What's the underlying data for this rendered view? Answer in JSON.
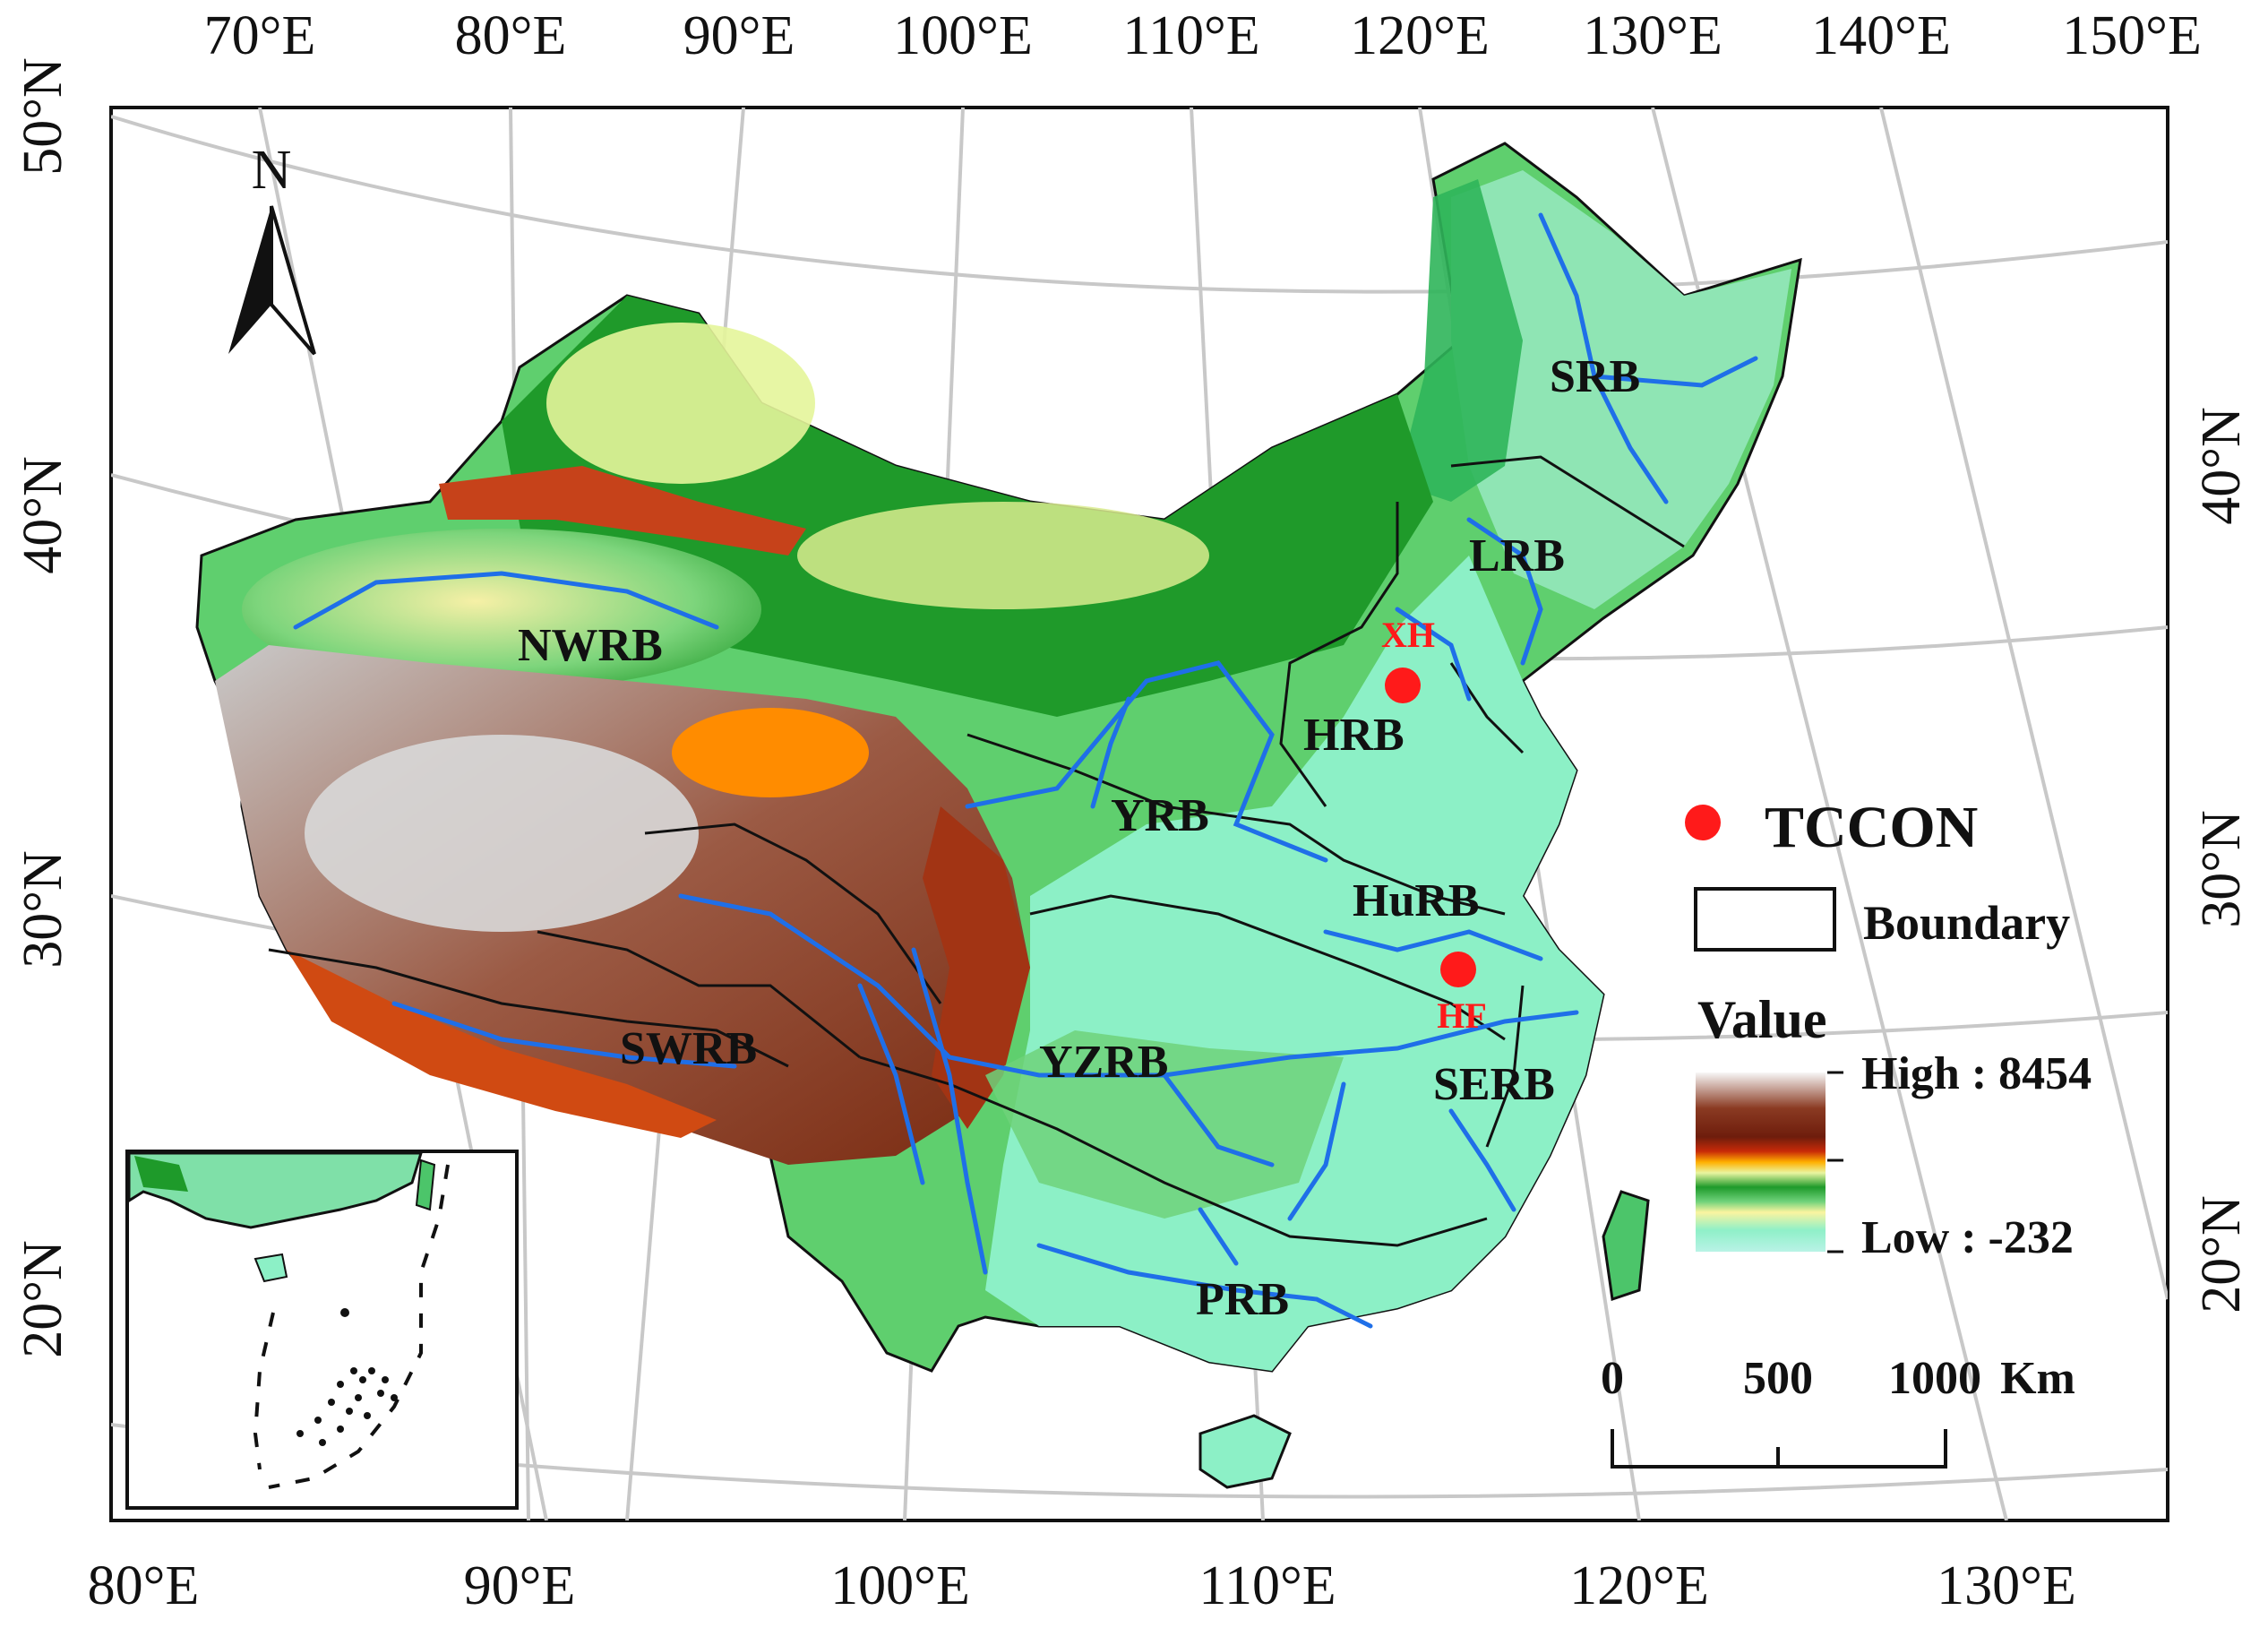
{
  "axes": {
    "top_lon": [
      "70°E",
      "80°E",
      "90°E",
      "100°E",
      "110°E",
      "120°E",
      "130°E",
      "140°E",
      "150°E"
    ],
    "bottom_lon": [
      "80°E",
      "90°E",
      "100°E",
      "110°E",
      "120°E",
      "130°E"
    ],
    "left_lat": [
      "50°N",
      "40°N",
      "30°N",
      "20°N"
    ],
    "right_lat": [
      "40°N",
      "30°N",
      "20°N"
    ]
  },
  "north_arrow": {
    "label": "N"
  },
  "basins": {
    "srb": "SRB",
    "lrb": "LRB",
    "nwrb": "NWRB",
    "hrb": "HRB",
    "yrb": "YRB",
    "hurb": "HuRB",
    "swrb": "SWRB",
    "yzrb": "YZRB",
    "serb": "SERB",
    "prb": "PRB"
  },
  "stations": {
    "xh": {
      "label": "XH",
      "color": "#ff1a1a"
    },
    "hf": {
      "label": "HF",
      "color": "#ff1a1a"
    }
  },
  "legend": {
    "tccon_label": "TCCON",
    "boundary_label": "Boundary",
    "value_title": "Value",
    "high_label": "High : 8454",
    "low_label": "Low : -232"
  },
  "scale_bar": {
    "ticks": [
      "0",
      "500",
      "1000"
    ],
    "unit": "Km"
  },
  "colors": {
    "river": "#1f6fe8",
    "boundary": "#111111",
    "station": "#ff1a1a",
    "elev_low": "#8ff0c8",
    "elev_mid": "#1e9a2a",
    "elev_high": "#7a2a10",
    "elev_peak": "#f2f2f2"
  }
}
